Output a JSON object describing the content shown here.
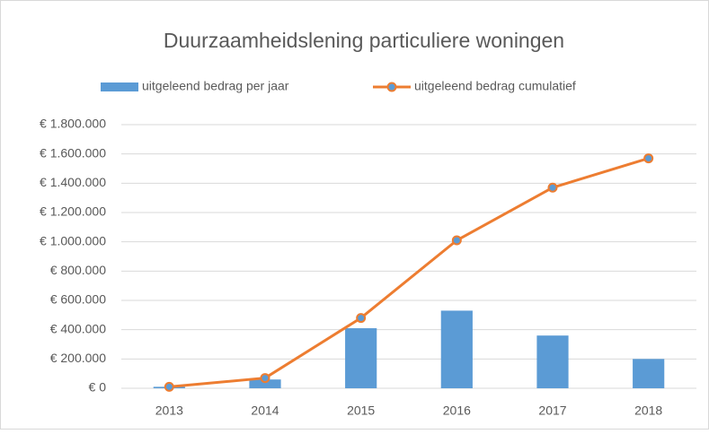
{
  "chart_data": {
    "type": "combo",
    "title": "Duurzaamheidslening particuliere woningen",
    "categories": [
      "2013",
      "2014",
      "2015",
      "2016",
      "2017",
      "2018"
    ],
    "series": [
      {
        "name": "uitgeleend bedrag per jaar",
        "type": "bar",
        "color": "#5b9bd5",
        "values": [
          10000,
          60000,
          410000,
          530000,
          360000,
          200000
        ]
      },
      {
        "name": "uitgeleend bedrag cumulatief",
        "type": "line",
        "color": "#ed7d31",
        "marker_color": "#5b9bd5",
        "values": [
          10000,
          70000,
          480000,
          1010000,
          1370000,
          1570000
        ]
      }
    ],
    "ylim": [
      0,
      1800000
    ],
    "yticks": [
      {
        "value": 0,
        "label": "€ 0"
      },
      {
        "value": 200000,
        "label": "€ 200.000"
      },
      {
        "value": 400000,
        "label": "€ 400.000"
      },
      {
        "value": 600000,
        "label": "€ 600.000"
      },
      {
        "value": 800000,
        "label": "€ 800.000"
      },
      {
        "value": 1000000,
        "label": "€ 1.000.000"
      },
      {
        "value": 1200000,
        "label": "€ 1.200.000"
      },
      {
        "value": 1400000,
        "label": "€ 1.400.000"
      },
      {
        "value": 1600000,
        "label": "€ 1.600.000"
      },
      {
        "value": 1800000,
        "label": "€ 1.800.000"
      }
    ],
    "grid": true,
    "legend": "top"
  }
}
